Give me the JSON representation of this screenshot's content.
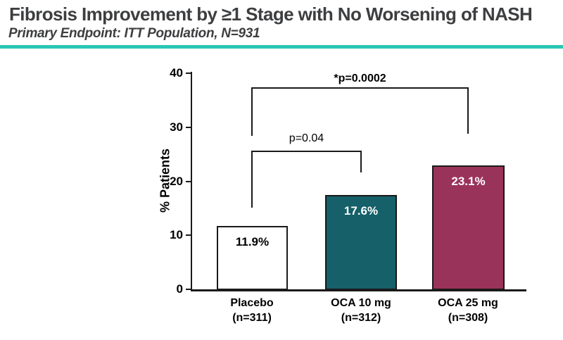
{
  "header": {
    "title": "Fibrosis Improvement by ≥1 Stage with No Worsening of NASH",
    "subtitle": "Primary Endpoint: ITT Population, N=931",
    "rule_color": "#2bc7b6"
  },
  "chart_data": {
    "type": "bar",
    "title": "Fibrosis Improvement by ≥1 Stage with No Worsening of NASH",
    "subtitle": "Primary Endpoint: ITT Population, N=931",
    "xlabel": "",
    "ylabel": "% Patients",
    "ylim": [
      0,
      40
    ],
    "yticks": [
      0,
      10,
      20,
      30,
      40
    ],
    "ytick_labels": [
      "0",
      "10",
      "20",
      "30",
      "40"
    ],
    "grid": false,
    "legend": "none",
    "categories": [
      "Placebo",
      "OCA 10 mg",
      "OCA 25 mg"
    ],
    "category_sublabels": [
      "(n=311)",
      "(n=312)",
      "(n=308)"
    ],
    "values": [
      11.9,
      17.6,
      23.1
    ],
    "value_labels": [
      "11.9%",
      "17.6%",
      "23.1%"
    ],
    "bar_fill_colors": [
      "#ffffff",
      "#156069",
      "#9a3359"
    ],
    "bar_label_colors": [
      "#000000",
      "#ffffff",
      "#ffffff"
    ],
    "bar_border_color": "#1a1a1a",
    "annotations": [
      {
        "text": "p=0.04",
        "compares": [
          "Placebo",
          "OCA 10 mg"
        ],
        "bold": false
      },
      {
        "text": "*p=0.0002",
        "compares": [
          "Placebo",
          "OCA 25 mg"
        ],
        "bold": true
      }
    ]
  }
}
